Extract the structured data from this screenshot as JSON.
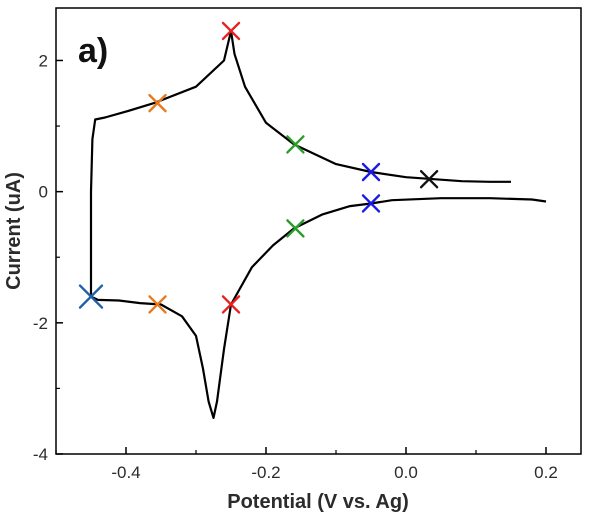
{
  "chart_data": {
    "type": "line",
    "panel_label": "a)",
    "title": "",
    "xlabel": "Potential (V vs. Ag)",
    "ylabel": "Current (uA)",
    "xlim": [
      -0.5,
      0.25
    ],
    "ylim": [
      -4,
      2.8
    ],
    "x_ticks": [
      -0.4,
      -0.2,
      0.0,
      0.2
    ],
    "x_tick_labels": [
      "-0.4",
      "-0.2",
      "0.0",
      "0.2"
    ],
    "y_ticks": [
      -4,
      -2,
      0,
      2
    ],
    "y_tick_labels": [
      "-4",
      "-2",
      "0",
      "2"
    ],
    "grid": false,
    "legend": "none",
    "series": [
      {
        "color": "#000000",
        "x": [
          0.15,
          0.12,
          0.08,
          0.04,
          0.0,
          -0.05,
          -0.1,
          -0.16,
          -0.2,
          -0.23,
          -0.245,
          -0.25,
          -0.26,
          -0.3,
          -0.36,
          -0.4,
          -0.43,
          -0.444,
          -0.448,
          -0.45,
          -0.45,
          -0.44,
          -0.41,
          -0.38,
          -0.35,
          -0.32,
          -0.3,
          -0.29,
          -0.282,
          -0.275,
          -0.27,
          -0.26,
          -0.25,
          -0.22,
          -0.19,
          -0.16,
          -0.12,
          -0.08,
          -0.05,
          -0.02,
          0.05,
          0.12,
          0.18,
          0.2
        ],
        "y": [
          0.15,
          0.15,
          0.16,
          0.19,
          0.22,
          0.3,
          0.42,
          0.72,
          1.05,
          1.6,
          2.1,
          2.45,
          2.0,
          1.6,
          1.35,
          1.22,
          1.13,
          1.1,
          0.8,
          0.0,
          -1.6,
          -1.65,
          -1.66,
          -1.7,
          -1.72,
          -1.9,
          -2.2,
          -2.7,
          -3.2,
          -3.45,
          -3.2,
          -2.4,
          -1.72,
          -1.15,
          -0.82,
          -0.56,
          -0.35,
          -0.22,
          -0.18,
          -0.13,
          -0.1,
          -0.1,
          -0.12,
          -0.15
        ]
      }
    ],
    "markers": [
      {
        "x": -0.45,
        "y": -1.6,
        "color": "#1f5fa8"
      },
      {
        "x": -0.355,
        "y": 1.35,
        "color": "#e87a1e"
      },
      {
        "x": -0.355,
        "y": -1.72,
        "color": "#e87a1e"
      },
      {
        "x": -0.25,
        "y": 2.45,
        "color": "#e8201e"
      },
      {
        "x": -0.25,
        "y": -1.72,
        "color": "#e8201e"
      },
      {
        "x": -0.158,
        "y": 0.72,
        "color": "#2a9d2a"
      },
      {
        "x": -0.158,
        "y": -0.56,
        "color": "#2a9d2a"
      },
      {
        "x": -0.05,
        "y": 0.3,
        "color": "#1a1ae8"
      },
      {
        "x": -0.05,
        "y": -0.18,
        "color": "#1a1ae8"
      },
      {
        "x": 0.033,
        "y": 0.19,
        "color": "#111111"
      }
    ]
  }
}
